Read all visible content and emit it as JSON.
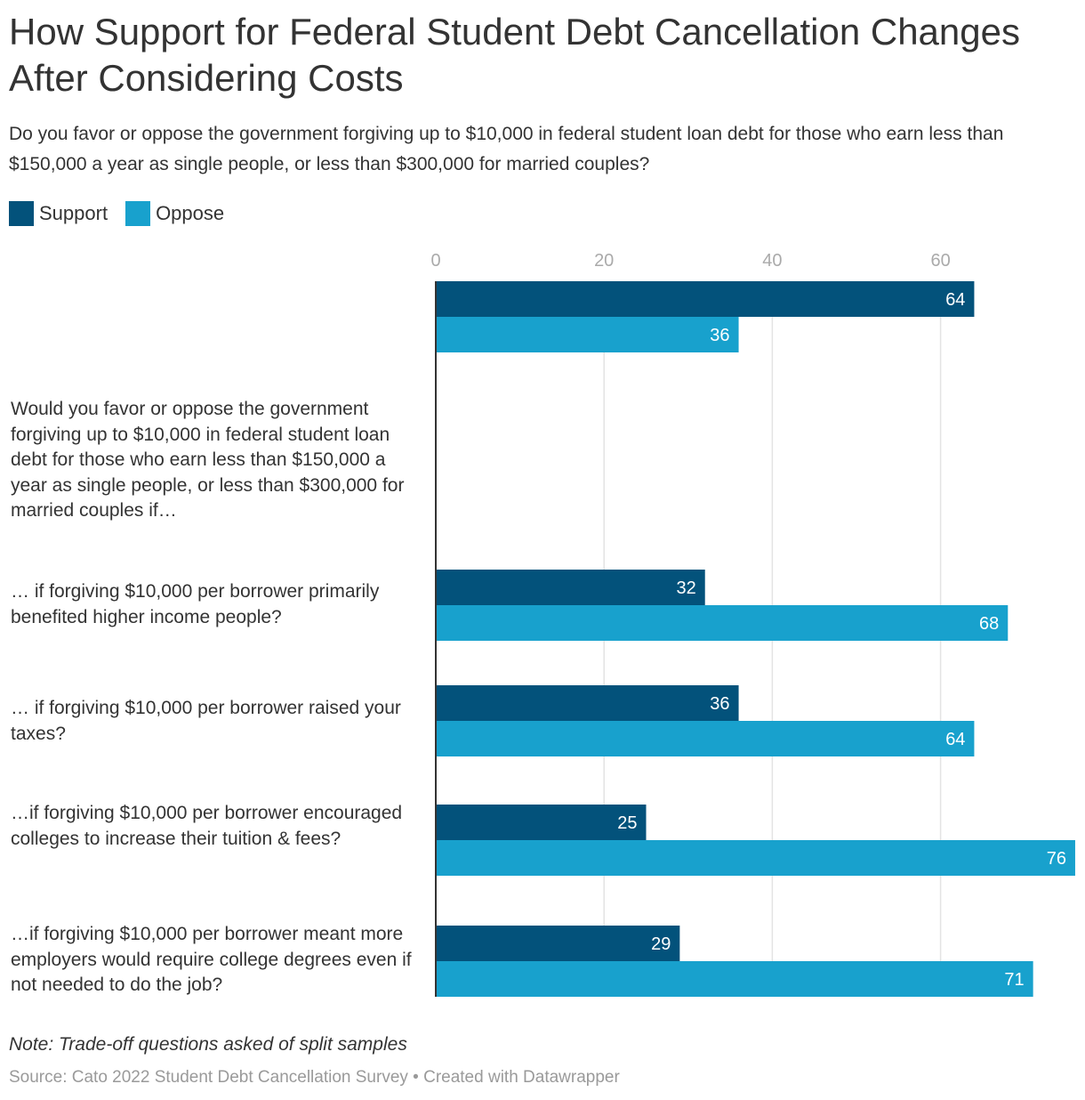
{
  "title": "How Support for Federal Student Debt Cancellation Changes After Considering Costs",
  "subtitle": "Do you favor or oppose the government forgiving up to $10,000 in federal student loan debt for those who earn less than $150,000 a year as single people, or less than $300,000 for married couples?",
  "note": "Note: Trade-off questions asked of split samples",
  "source": "Source: Cato 2022 Student Debt Cancellation Survey • Created with Datawrapper",
  "colors": {
    "support": "#03527b",
    "oppose": "#18a1cd",
    "grid": "#e3e3e3",
    "axis": "#333333"
  },
  "chart_data": {
    "type": "bar",
    "orientation": "horizontal",
    "categories": [
      "",
      "Would you favor or oppose the government forgiving up to $10,000 in federal student loan debt for those who earn less than $150,000 a year as single people, or less than $300,000 for married couples if…",
      "… if forgiving $10,000 per borrower primarily benefited higher income people?",
      "… if forgiving $10,000 per borrower raised your taxes?",
      "…if forgiving $10,000 per borrower encouraged colleges to increase their tuition & fees?",
      "…if forgiving $10,000 per borrower meant more employers would require college degrees even if not needed to do the job?"
    ],
    "series": [
      {
        "name": "Support",
        "values": [
          64,
          null,
          32,
          36,
          25,
          29
        ]
      },
      {
        "name": "Oppose",
        "values": [
          36,
          null,
          68,
          64,
          76,
          71
        ]
      }
    ],
    "xticks": [
      0,
      20,
      40,
      60
    ],
    "xlim": [
      0,
      76
    ],
    "grid": true,
    "legend": "top-left",
    "value_labels": true
  }
}
